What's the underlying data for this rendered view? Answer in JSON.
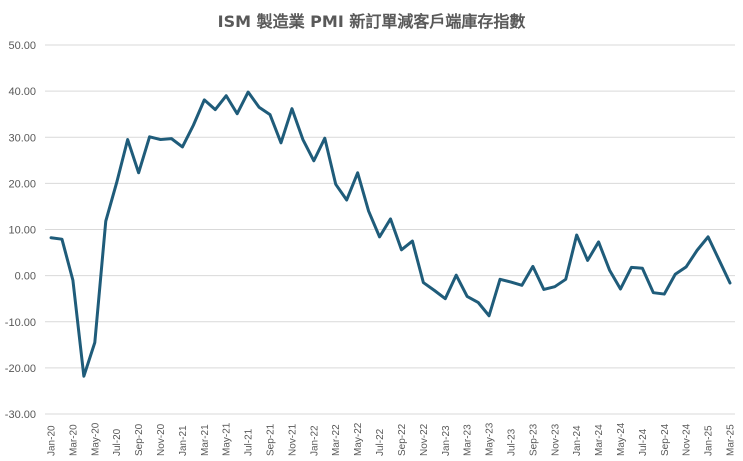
{
  "chart_data": {
    "type": "line",
    "title": "ISM 製造業 PMI 新訂單減客戶端庫存指數",
    "xlabel": "",
    "ylabel": "",
    "ylim": [
      -30,
      50
    ],
    "y_ticks": [
      "50.00",
      "40.00",
      "30.00",
      "20.00",
      "10.00",
      "0.00",
      "-10.00",
      "-20.00",
      "-30.00"
    ],
    "y_tick_values": [
      50,
      40,
      30,
      20,
      10,
      0,
      -10,
      -20,
      -30
    ],
    "x_tick_labels": [
      "Jan-20",
      "Mar-20",
      "May-20",
      "Jul-20",
      "Sep-20",
      "Nov-20",
      "Jan-21",
      "Mar-21",
      "May-21",
      "Jul-21",
      "Sep-21",
      "Nov-21",
      "Jan-22",
      "Mar-22",
      "May-22",
      "Jul-22",
      "Sep-22",
      "Nov-22",
      "Jan-23",
      "Mar-23",
      "May-23",
      "Jul-23",
      "Sep-23",
      "Nov-23",
      "Jan-24",
      "Mar-24",
      "May-24",
      "Jul-24",
      "Sep-24",
      "Nov-24",
      "Jan-25",
      "Mar-25"
    ],
    "grid": true,
    "legend": "none",
    "line_color": "#1f5c7a",
    "series": [
      {
        "name": "ISM 製造業 PMI 新訂單減客戶端庫存指數",
        "values": [
          8.2,
          7.9,
          -1.0,
          -21.8,
          -14.5,
          11.8,
          20.2,
          29.5,
          22.3,
          30.1,
          29.5,
          29.7,
          27.9,
          32.6,
          38.1,
          36.0,
          39.0,
          35.1,
          39.8,
          36.5,
          34.9,
          28.8,
          36.2,
          29.5,
          24.9,
          29.8,
          19.8,
          16.4,
          22.3,
          14.0,
          8.4,
          12.3,
          5.6,
          7.5,
          -1.5,
          -3.2,
          -5.0,
          0.1,
          -4.5,
          -5.8,
          -8.7,
          -0.8,
          -1.4,
          -2.1,
          2.0,
          -3.0,
          -2.4,
          -0.8,
          8.8,
          3.3,
          7.3,
          1.2,
          -2.9,
          1.8,
          1.6,
          -3.7,
          -4.0,
          0.3,
          1.9,
          5.5,
          8.4,
          3.4,
          -1.6
        ]
      }
    ]
  }
}
